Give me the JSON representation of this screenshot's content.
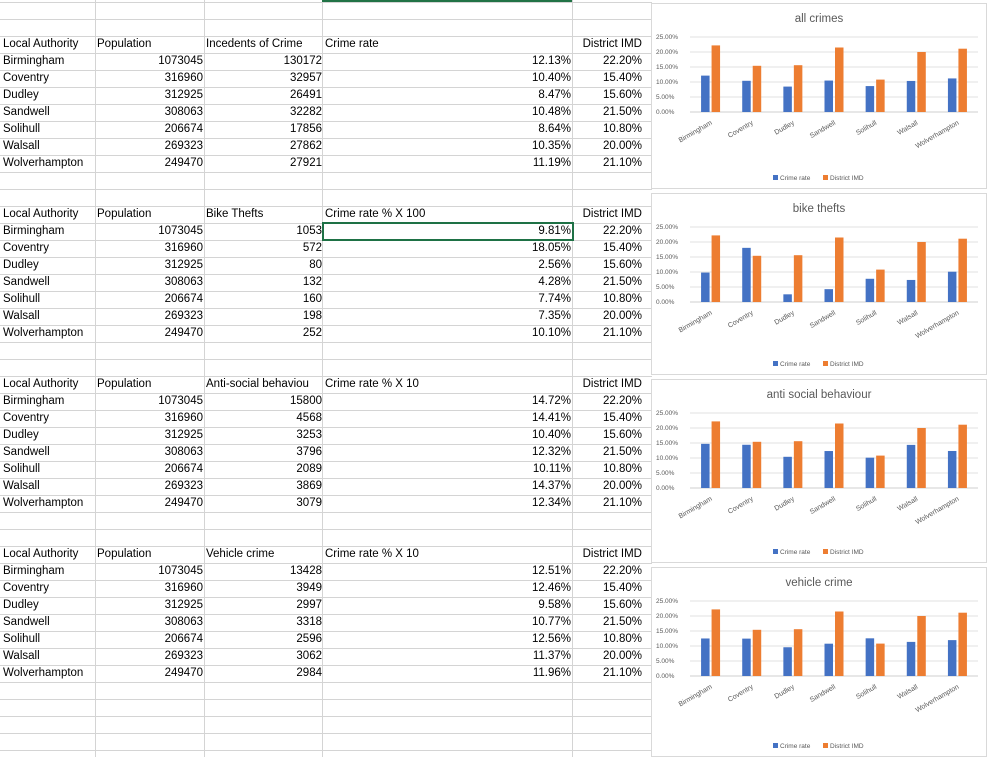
{
  "colors": {
    "crime_rate": "#4472C4",
    "district_imd": "#ED7D31",
    "selection": "#1E7145"
  },
  "tables": [
    {
      "headers": [
        "Local Authority",
        "Population",
        "Incedents of Crime",
        "Crime rate",
        "District IMD"
      ],
      "rows": [
        [
          "Birmingham",
          "1073045",
          "130172",
          "12.13%",
          "22.20%"
        ],
        [
          "Coventry",
          "316960",
          "32957",
          "10.40%",
          "15.40%"
        ],
        [
          "Dudley",
          "312925",
          "26491",
          "8.47%",
          "15.60%"
        ],
        [
          "Sandwell",
          "308063",
          "32282",
          "10.48%",
          "21.50%"
        ],
        [
          "Solihull",
          "206674",
          "17856",
          "8.64%",
          "10.80%"
        ],
        [
          "Walsall",
          "269323",
          "27862",
          "10.35%",
          "20.00%"
        ],
        [
          "Wolverhampton",
          "249470",
          "27921",
          "11.19%",
          "21.10%"
        ]
      ]
    },
    {
      "headers": [
        "Local Authority",
        "Population",
        "Bike Thefts",
        "Crime rate % X 100",
        "District IMD"
      ],
      "rows": [
        [
          "Birmingham",
          "1073045",
          "1053",
          "9.81%",
          "22.20%"
        ],
        [
          "Coventry",
          "316960",
          "572",
          "18.05%",
          "15.40%"
        ],
        [
          "Dudley",
          "312925",
          "80",
          "2.56%",
          "15.60%"
        ],
        [
          "Sandwell",
          "308063",
          "132",
          "4.28%",
          "21.50%"
        ],
        [
          "Solihull",
          "206674",
          "160",
          "7.74%",
          "10.80%"
        ],
        [
          "Walsall",
          "269323",
          "198",
          "7.35%",
          "20.00%"
        ],
        [
          "Wolverhampton",
          "249470",
          "252",
          "10.10%",
          "21.10%"
        ]
      ]
    },
    {
      "headers": [
        "Local Authority",
        "Population",
        "Anti-social behaviou",
        "Crime rate % X 10",
        "District IMD"
      ],
      "rows": [
        [
          "Birmingham",
          "1073045",
          "15800",
          "14.72%",
          "22.20%"
        ],
        [
          "Coventry",
          "316960",
          "4568",
          "14.41%",
          "15.40%"
        ],
        [
          "Dudley",
          "312925",
          "3253",
          "10.40%",
          "15.60%"
        ],
        [
          "Sandwell",
          "308063",
          "3796",
          "12.32%",
          "21.50%"
        ],
        [
          "Solihull",
          "206674",
          "2089",
          "10.11%",
          "10.80%"
        ],
        [
          "Walsall",
          "269323",
          "3869",
          "14.37%",
          "20.00%"
        ],
        [
          "Wolverhampton",
          "249470",
          "3079",
          "12.34%",
          "21.10%"
        ]
      ]
    },
    {
      "headers": [
        "Local Authority",
        "Population",
        "Vehicle crime",
        "Crime rate % X 10",
        "District IMD"
      ],
      "rows": [
        [
          "Birmingham",
          "1073045",
          "13428",
          "12.51%",
          "22.20%"
        ],
        [
          "Coventry",
          "316960",
          "3949",
          "12.46%",
          "15.40%"
        ],
        [
          "Dudley",
          "312925",
          "2997",
          "9.58%",
          "15.60%"
        ],
        [
          "Sandwell",
          "308063",
          "3318",
          "10.77%",
          "21.50%"
        ],
        [
          "Solihull",
          "206674",
          "2596",
          "12.56%",
          "10.80%"
        ],
        [
          "Walsall",
          "269323",
          "3062",
          "11.37%",
          "20.00%"
        ],
        [
          "Wolverhampton",
          "249470",
          "2984",
          "11.96%",
          "21.10%"
        ]
      ]
    }
  ],
  "chart_data": [
    {
      "type": "bar",
      "title": "all crimes",
      "categories": [
        "Birmingham",
        "Coventry",
        "Dudley",
        "Sandwell",
        "Solihull",
        "Walsall",
        "Wolverhampton"
      ],
      "series": [
        {
          "name": "Crime rate",
          "values": [
            12.13,
            10.4,
            8.47,
            10.48,
            8.64,
            10.35,
            11.19
          ]
        },
        {
          "name": "District IMD",
          "values": [
            22.2,
            15.4,
            15.6,
            21.5,
            10.8,
            20.0,
            21.1
          ]
        }
      ],
      "ylim": [
        0,
        25
      ],
      "yticks": [
        "0.00%",
        "5.00%",
        "10.00%",
        "15.00%",
        "20.00%",
        "25.00%"
      ],
      "legend": "bottom",
      "grid": true
    },
    {
      "type": "bar",
      "title": "bike thefts",
      "categories": [
        "Birmingham",
        "Coventry",
        "Dudley",
        "Sandwell",
        "Solihull",
        "Walsall",
        "Wolverhampton"
      ],
      "series": [
        {
          "name": "Crime rate",
          "values": [
            9.81,
            18.05,
            2.56,
            4.28,
            7.74,
            7.35,
            10.1
          ]
        },
        {
          "name": "District IMD",
          "values": [
            22.2,
            15.4,
            15.6,
            21.5,
            10.8,
            20.0,
            21.1
          ]
        }
      ],
      "ylim": [
        0,
        25
      ],
      "yticks": [
        "0.00%",
        "5.00%",
        "10.00%",
        "15.00%",
        "20.00%",
        "25.00%"
      ],
      "legend": "bottom",
      "grid": true
    },
    {
      "type": "bar",
      "title": "anti social behaviour",
      "categories": [
        "Birmingham",
        "Coventry",
        "Dudley",
        "Sandwell",
        "Solihull",
        "Walsall",
        "Wolverhampton"
      ],
      "series": [
        {
          "name": "Crime rate",
          "values": [
            14.72,
            14.41,
            10.4,
            12.32,
            10.11,
            14.37,
            12.34
          ]
        },
        {
          "name": "District IMD",
          "values": [
            22.2,
            15.4,
            15.6,
            21.5,
            10.8,
            20.0,
            21.1
          ]
        }
      ],
      "ylim": [
        0,
        25
      ],
      "yticks": [
        "0.00%",
        "5.00%",
        "10.00%",
        "15.00%",
        "20.00%",
        "25.00%"
      ],
      "legend": "bottom",
      "grid": true
    },
    {
      "type": "bar",
      "title": "vehicle crime",
      "categories": [
        "Birmingham",
        "Coventry",
        "Dudley",
        "Sandwell",
        "Solihull",
        "Walsall",
        "Wolverhampton"
      ],
      "series": [
        {
          "name": "Crime rate",
          "values": [
            12.51,
            12.46,
            9.58,
            10.77,
            12.56,
            11.37,
            11.96
          ]
        },
        {
          "name": "District IMD",
          "values": [
            22.2,
            15.4,
            15.6,
            21.5,
            10.8,
            20.0,
            21.1
          ]
        }
      ],
      "ylim": [
        0,
        25
      ],
      "yticks": [
        "0.00%",
        "5.00%",
        "10.00%",
        "15.00%",
        "20.00%",
        "25.00%"
      ],
      "legend": "bottom",
      "grid": true
    }
  ]
}
